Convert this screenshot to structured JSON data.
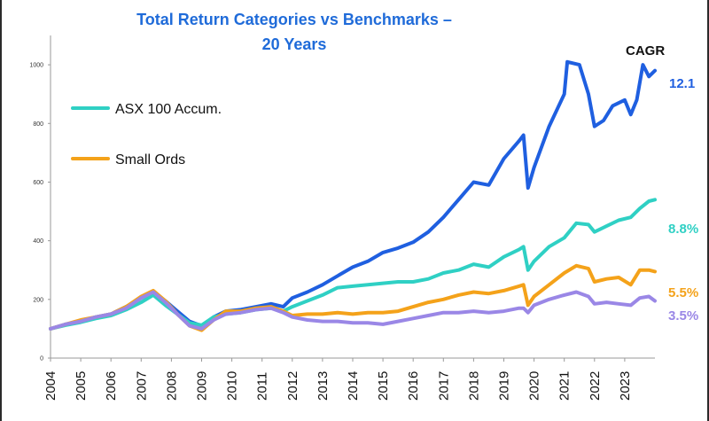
{
  "chart_data": {
    "type": "line",
    "title_lines": [
      "Total Return Categories vs Benchmarks –",
      "20 Years"
    ],
    "xlabel": "",
    "ylabel": "",
    "xlim": [
      2004,
      2024
    ],
    "ylim": [
      0,
      1100
    ],
    "x_ticks": [
      2004,
      2005,
      2006,
      2007,
      2008,
      2009,
      2010,
      2011,
      2012,
      2013,
      2014,
      2015,
      2016,
      2017,
      2018,
      2019,
      2020,
      2021,
      2022,
      2023
    ],
    "y_ticks": [
      0,
      200,
      400,
      600,
      800,
      1000
    ],
    "grid": false,
    "legend_position": "top-left",
    "annotation_header": "CAGR",
    "series": [
      {
        "key": "top",
        "color": "#1f5fe0",
        "end_label": "12.1",
        "points": [
          [
            2004.0,
            100
          ],
          [
            2004.5,
            115
          ],
          [
            2005.0,
            125
          ],
          [
            2005.5,
            140
          ],
          [
            2006.0,
            150
          ],
          [
            2006.5,
            175
          ],
          [
            2007.0,
            205
          ],
          [
            2007.4,
            225
          ],
          [
            2007.8,
            195
          ],
          [
            2008.2,
            160
          ],
          [
            2008.6,
            125
          ],
          [
            2009.0,
            110
          ],
          [
            2009.4,
            140
          ],
          [
            2009.8,
            160
          ],
          [
            2010.3,
            165
          ],
          [
            2010.8,
            175
          ],
          [
            2011.3,
            185
          ],
          [
            2011.7,
            175
          ],
          [
            2012.0,
            205
          ],
          [
            2012.5,
            225
          ],
          [
            2013.0,
            250
          ],
          [
            2013.5,
            280
          ],
          [
            2014.0,
            310
          ],
          [
            2014.5,
            330
          ],
          [
            2015.0,
            360
          ],
          [
            2015.5,
            375
          ],
          [
            2016.0,
            395
          ],
          [
            2016.5,
            430
          ],
          [
            2017.0,
            480
          ],
          [
            2017.5,
            540
          ],
          [
            2018.0,
            600
          ],
          [
            2018.5,
            590
          ],
          [
            2019.0,
            680
          ],
          [
            2019.5,
            740
          ],
          [
            2019.65,
            760
          ],
          [
            2019.8,
            580
          ],
          [
            2020.0,
            650
          ],
          [
            2020.5,
            790
          ],
          [
            2021.0,
            900
          ],
          [
            2021.1,
            1010
          ],
          [
            2021.5,
            1000
          ],
          [
            2021.8,
            900
          ],
          [
            2022.0,
            790
          ],
          [
            2022.3,
            810
          ],
          [
            2022.6,
            860
          ],
          [
            2023.0,
            880
          ],
          [
            2023.2,
            830
          ],
          [
            2023.4,
            880
          ],
          [
            2023.6,
            1000
          ],
          [
            2023.8,
            960
          ],
          [
            2024.0,
            980
          ]
        ]
      },
      {
        "key": "asx",
        "name": "ASX 100 Accum.",
        "color": "#2fd0c4",
        "end_label": "8.8%",
        "points": [
          [
            2004.0,
            100
          ],
          [
            2004.5,
            112
          ],
          [
            2005.0,
            122
          ],
          [
            2005.5,
            135
          ],
          [
            2006.0,
            145
          ],
          [
            2006.5,
            165
          ],
          [
            2007.0,
            190
          ],
          [
            2007.4,
            215
          ],
          [
            2007.8,
            180
          ],
          [
            2008.2,
            150
          ],
          [
            2008.6,
            120
          ],
          [
            2009.0,
            112
          ],
          [
            2009.4,
            140
          ],
          [
            2009.8,
            150
          ],
          [
            2010.3,
            155
          ],
          [
            2010.8,
            165
          ],
          [
            2011.3,
            170
          ],
          [
            2011.7,
            160
          ],
          [
            2012.0,
            175
          ],
          [
            2012.5,
            195
          ],
          [
            2013.0,
            215
          ],
          [
            2013.5,
            240
          ],
          [
            2014.0,
            245
          ],
          [
            2014.5,
            250
          ],
          [
            2015.0,
            255
          ],
          [
            2015.5,
            260
          ],
          [
            2016.0,
            260
          ],
          [
            2016.5,
            270
          ],
          [
            2017.0,
            290
          ],
          [
            2017.5,
            300
          ],
          [
            2018.0,
            320
          ],
          [
            2018.5,
            310
          ],
          [
            2019.0,
            345
          ],
          [
            2019.5,
            370
          ],
          [
            2019.65,
            380
          ],
          [
            2019.8,
            300
          ],
          [
            2020.0,
            330
          ],
          [
            2020.5,
            380
          ],
          [
            2021.0,
            410
          ],
          [
            2021.4,
            460
          ],
          [
            2021.8,
            455
          ],
          [
            2022.0,
            430
          ],
          [
            2022.4,
            450
          ],
          [
            2022.8,
            470
          ],
          [
            2023.2,
            480
          ],
          [
            2023.5,
            510
          ],
          [
            2023.8,
            535
          ],
          [
            2024.0,
            540
          ]
        ]
      },
      {
        "key": "small",
        "name": "Small Ords",
        "color": "#f4a21a",
        "end_label": "5.5%",
        "points": [
          [
            2004.0,
            100
          ],
          [
            2004.5,
            115
          ],
          [
            2005.0,
            130
          ],
          [
            2005.5,
            140
          ],
          [
            2006.0,
            150
          ],
          [
            2006.5,
            175
          ],
          [
            2007.0,
            210
          ],
          [
            2007.4,
            230
          ],
          [
            2007.8,
            195
          ],
          [
            2008.2,
            150
          ],
          [
            2008.6,
            110
          ],
          [
            2009.0,
            95
          ],
          [
            2009.4,
            130
          ],
          [
            2009.8,
            160
          ],
          [
            2010.3,
            160
          ],
          [
            2010.8,
            170
          ],
          [
            2011.3,
            175
          ],
          [
            2011.7,
            160
          ],
          [
            2012.0,
            145
          ],
          [
            2012.5,
            150
          ],
          [
            2013.0,
            150
          ],
          [
            2013.5,
            155
          ],
          [
            2014.0,
            150
          ],
          [
            2014.5,
            155
          ],
          [
            2015.0,
            155
          ],
          [
            2015.5,
            160
          ],
          [
            2016.0,
            175
          ],
          [
            2016.5,
            190
          ],
          [
            2017.0,
            200
          ],
          [
            2017.5,
            215
          ],
          [
            2018.0,
            225
          ],
          [
            2018.5,
            220
          ],
          [
            2019.0,
            230
          ],
          [
            2019.5,
            245
          ],
          [
            2019.65,
            250
          ],
          [
            2019.8,
            180
          ],
          [
            2020.0,
            210
          ],
          [
            2020.5,
            250
          ],
          [
            2021.0,
            290
          ],
          [
            2021.4,
            315
          ],
          [
            2021.8,
            305
          ],
          [
            2022.0,
            260
          ],
          [
            2022.4,
            270
          ],
          [
            2022.8,
            275
          ],
          [
            2023.2,
            250
          ],
          [
            2023.5,
            300
          ],
          [
            2023.8,
            300
          ],
          [
            2024.0,
            295
          ]
        ]
      },
      {
        "key": "bottom",
        "color": "#9a87e6",
        "end_label": "3.5%",
        "points": [
          [
            2004.0,
            100
          ],
          [
            2004.5,
            115
          ],
          [
            2005.0,
            125
          ],
          [
            2005.5,
            140
          ],
          [
            2006.0,
            150
          ],
          [
            2006.5,
            170
          ],
          [
            2007.0,
            205
          ],
          [
            2007.4,
            225
          ],
          [
            2007.8,
            190
          ],
          [
            2008.2,
            150
          ],
          [
            2008.6,
            110
          ],
          [
            2009.0,
            100
          ],
          [
            2009.4,
            130
          ],
          [
            2009.8,
            150
          ],
          [
            2010.3,
            155
          ],
          [
            2010.8,
            165
          ],
          [
            2011.3,
            170
          ],
          [
            2011.7,
            155
          ],
          [
            2012.0,
            140
          ],
          [
            2012.5,
            130
          ],
          [
            2013.0,
            125
          ],
          [
            2013.5,
            125
          ],
          [
            2014.0,
            120
          ],
          [
            2014.5,
            120
          ],
          [
            2015.0,
            115
          ],
          [
            2015.5,
            125
          ],
          [
            2016.0,
            135
          ],
          [
            2016.5,
            145
          ],
          [
            2017.0,
            155
          ],
          [
            2017.5,
            155
          ],
          [
            2018.0,
            160
          ],
          [
            2018.5,
            155
          ],
          [
            2019.0,
            160
          ],
          [
            2019.5,
            170
          ],
          [
            2019.65,
            170
          ],
          [
            2019.8,
            155
          ],
          [
            2020.0,
            180
          ],
          [
            2020.5,
            200
          ],
          [
            2021.0,
            215
          ],
          [
            2021.4,
            225
          ],
          [
            2021.8,
            210
          ],
          [
            2022.0,
            185
          ],
          [
            2022.4,
            190
          ],
          [
            2022.8,
            185
          ],
          [
            2023.2,
            180
          ],
          [
            2023.5,
            205
          ],
          [
            2023.8,
            210
          ],
          [
            2024.0,
            195
          ]
        ]
      }
    ]
  }
}
